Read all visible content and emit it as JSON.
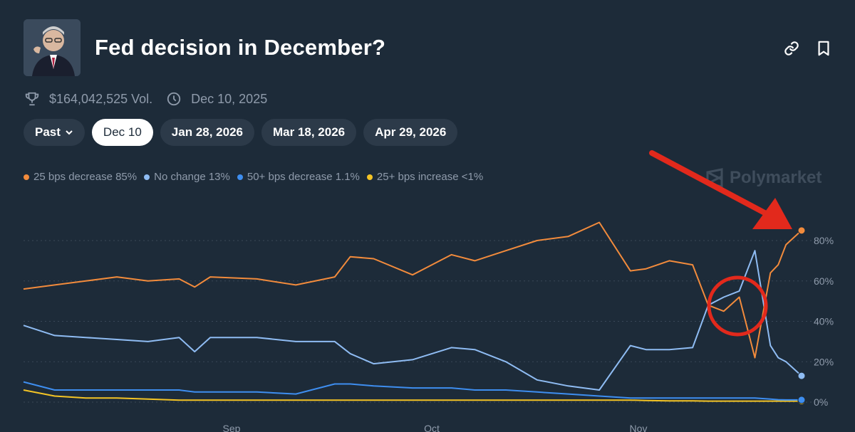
{
  "header": {
    "title": "Fed decision in December?",
    "avatar_icon": "portrait-image",
    "link_icon": "link-icon",
    "bookmark_icon": "bookmark-icon"
  },
  "meta": {
    "volume": "$164,042,525 Vol.",
    "date": "Dec 10, 2025"
  },
  "tabs": {
    "past": "Past",
    "items": [
      "Dec 10",
      "Jan 28, 2026",
      "Mar 18, 2026",
      "Apr 29, 2026"
    ],
    "active": "Dec 10"
  },
  "watermark": "Polymarket",
  "colors": {
    "orange": "#f28b3c",
    "lightblue": "#8fbcf3",
    "blue": "#3e8ef0",
    "yellow": "#f4c425",
    "annotation_red": "#e2291c"
  },
  "chart_data": {
    "type": "line",
    "legend": [
      "25 bps decrease 85%",
      "No change 13%",
      "50+ bps decrease 1.1%",
      "25+ bps increase <1%"
    ],
    "x_tick_labels": [
      "Sep",
      "Oct",
      "Nov"
    ],
    "y_tick_labels": [
      "0%",
      "20%",
      "40%",
      "60%",
      "80%"
    ],
    "ylim": [
      0,
      85
    ],
    "x": [
      0,
      0.04,
      0.08,
      0.12,
      0.16,
      0.2,
      0.22,
      0.24,
      0.3,
      0.35,
      0.4,
      0.42,
      0.45,
      0.5,
      0.55,
      0.58,
      0.62,
      0.66,
      0.7,
      0.74,
      0.78,
      0.8,
      0.83,
      0.86,
      0.88,
      0.9,
      0.92,
      0.94,
      0.96,
      0.97,
      0.98,
      1.0
    ],
    "series": [
      {
        "name": "25 bps decrease",
        "color": "#f28b3c",
        "values": [
          56,
          58,
          60,
          62,
          60,
          61,
          57,
          62,
          61,
          58,
          62,
          72,
          71,
          63,
          73,
          70,
          75,
          80,
          82,
          89,
          65,
          66,
          70,
          68,
          48,
          45,
          52,
          22,
          64,
          68,
          78,
          85
        ]
      },
      {
        "name": "No change",
        "color": "#8fbcf3",
        "values": [
          38,
          33,
          32,
          31,
          30,
          32,
          25,
          32,
          32,
          30,
          30,
          24,
          19,
          21,
          27,
          26,
          20,
          11,
          8,
          6,
          28,
          26,
          26,
          27,
          48,
          52,
          55,
          75,
          28,
          22,
          20,
          13
        ]
      },
      {
        "name": "50+ bps decrease",
        "color": "#3e8ef0",
        "values": [
          10,
          6,
          6,
          6,
          6,
          6,
          5,
          5,
          5,
          4,
          9,
          9,
          8,
          7,
          7,
          6,
          6,
          5,
          4,
          3,
          2,
          2,
          2,
          2,
          2,
          2,
          2,
          2,
          1.5,
          1.2,
          1.1,
          1.1
        ]
      },
      {
        "name": "25+ bps increase",
        "color": "#f4c425",
        "values": [
          6,
          3,
          2,
          2,
          1.5,
          1,
          1,
          1,
          1,
          1,
          1,
          1,
          1,
          1,
          1,
          1,
          1,
          1,
          1,
          1,
          1,
          0.8,
          0.6,
          0.6,
          0.5,
          0.5,
          0.5,
          0.5,
          0.5,
          0.5,
          0.5,
          0.5
        ]
      }
    ],
    "annotations": [
      "red-arrow-to-latest-value",
      "red-circle-around-crossover"
    ]
  }
}
